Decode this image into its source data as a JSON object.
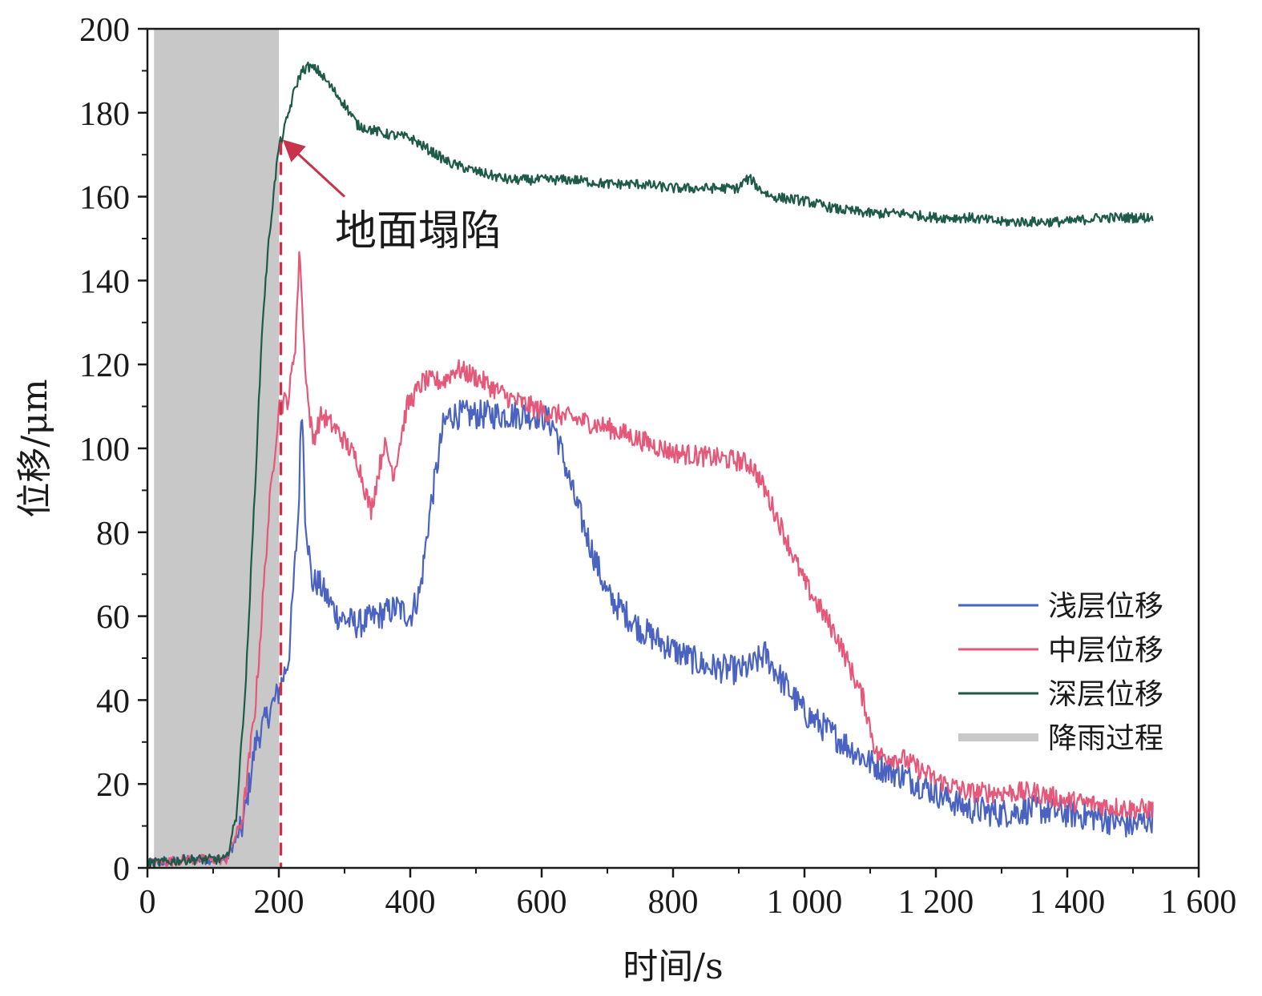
{
  "chart_data": {
    "type": "line",
    "title": "",
    "xlabel": "时间/s",
    "ylabel": "位移/μm",
    "xlim": [
      0,
      1600
    ],
    "ylim": [
      0,
      200
    ],
    "x_ticks": [
      0,
      200,
      400,
      600,
      800,
      1000,
      1200,
      1400,
      1600
    ],
    "x_tick_labels": [
      "0",
      "200",
      "400",
      "600",
      "800",
      "1 000",
      "1 200",
      "1 400",
      "1 600"
    ],
    "y_ticks": [
      0,
      20,
      40,
      60,
      80,
      100,
      120,
      140,
      160,
      180,
      200
    ],
    "y_tick_labels": [
      "0",
      "20",
      "40",
      "60",
      "80",
      "100",
      "120",
      "140",
      "160",
      "180",
      "200"
    ],
    "grid": false,
    "legend_position": "bottom-right",
    "shaded_region": {
      "name": "降雨过程",
      "x_start": 10,
      "x_end": 200,
      "color": "#c8c8c8"
    },
    "reference_line": {
      "x": 203,
      "color": "#c8324a",
      "style": "dashed"
    },
    "annotation": {
      "text": "地面塌陷",
      "point_x": 205,
      "point_y": 173,
      "text_x": 270,
      "text_y": 152,
      "color": "#c8324a"
    },
    "series": [
      {
        "name": "浅层位移",
        "color": "#4a63c0",
        "noise": 3.5,
        "x": [
          0,
          60,
          120,
          145,
          165,
          185,
          200,
          215,
          230,
          235,
          240,
          250,
          260,
          290,
          320,
          350,
          380,
          400,
          415,
          430,
          450,
          460,
          480,
          500,
          550,
          600,
          620,
          650,
          700,
          750,
          800,
          850,
          900,
          920,
          940,
          960,
          1000,
          1050,
          1100,
          1150,
          1200,
          1250,
          1300,
          1350,
          1400,
          1450,
          1500,
          1530
        ],
        "y": [
          1,
          2,
          2,
          10,
          30,
          37,
          42,
          50,
          85,
          113,
          85,
          68,
          68,
          60,
          58,
          60,
          62,
          60,
          66,
          85,
          105,
          108,
          108,
          108,
          108,
          108,
          105,
          88,
          65,
          57,
          52,
          48,
          47,
          48,
          51,
          46,
          37,
          31,
          25,
          22,
          18,
          14,
          13,
          14,
          13,
          12,
          10,
          12
        ]
      },
      {
        "name": "中层位移",
        "color": "#e5587a",
        "noise": 2.5,
        "x": [
          0,
          60,
          120,
          145,
          165,
          185,
          200,
          215,
          225,
          232,
          238,
          245,
          252,
          265,
          290,
          320,
          340,
          360,
          375,
          395,
          420,
          450,
          470,
          500,
          550,
          600,
          650,
          700,
          750,
          800,
          850,
          900,
          920,
          940,
          960,
          1000,
          1050,
          1090,
          1110,
          1150,
          1200,
          1250,
          1300,
          1350,
          1400,
          1450,
          1500,
          1530
        ],
        "y": [
          1,
          2,
          2,
          12,
          40,
          85,
          110,
          112,
          125,
          148,
          125,
          110,
          102,
          108,
          104,
          97,
          85,
          101,
          94,
          110,
          116,
          116,
          119,
          117,
          112,
          109,
          107,
          105,
          102,
          99,
          98,
          97,
          96,
          90,
          83,
          68,
          55,
          40,
          27,
          26,
          21,
          18,
          18,
          18,
          16,
          15,
          14,
          14
        ]
      },
      {
        "name": "深层位移",
        "color": "#1e5a48",
        "noise": 1.2,
        "x": [
          0,
          60,
          120,
          135,
          150,
          165,
          175,
          185,
          195,
          200,
          205,
          215,
          225,
          235,
          245,
          260,
          280,
          300,
          320,
          340,
          360,
          400,
          420,
          440,
          460,
          500,
          550,
          600,
          650,
          700,
          750,
          800,
          850,
          900,
          910,
          920,
          930,
          950,
          1000,
          1050,
          1100,
          1150,
          1200,
          1250,
          1300,
          1350,
          1400,
          1450,
          1500,
          1530
        ],
        "y": [
          1,
          2,
          2,
          12,
          45,
          95,
          130,
          150,
          165,
          172,
          174,
          180,
          186,
          190,
          191,
          190,
          186,
          182,
          177,
          176,
          175,
          174,
          172,
          170,
          168,
          166,
          164,
          164,
          164,
          163,
          163,
          162,
          162,
          162,
          164,
          164,
          162,
          160,
          159,
          157,
          156,
          156,
          155,
          155,
          154,
          154,
          154,
          155,
          155,
          155
        ]
      }
    ]
  }
}
